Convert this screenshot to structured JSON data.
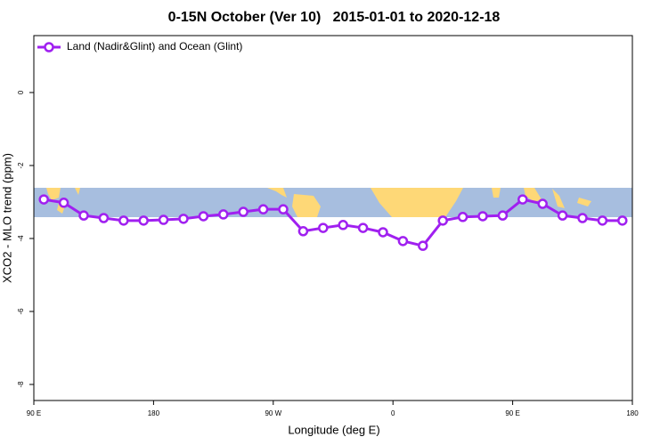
{
  "chart_data": {
    "type": "line",
    "title": "0-15N October (Ver 10)   2015-01-01 to 2020-12-18",
    "x_label": "Longitude (deg E)",
    "y_label": "XCO2 - MLO trend (ppm)",
    "x": [
      97.5,
      112.5,
      127.5,
      142.5,
      157.5,
      172.5,
      187.5,
      202.5,
      217.5,
      232.5,
      247.5,
      262.5,
      277.5,
      292.5,
      307.5,
      322.5,
      337.5,
      352.5,
      367.5,
      382.5,
      397.5,
      412.5,
      427.5,
      442.5,
      457.5,
      472.5,
      487.5,
      502.5,
      517.5,
      532.5
    ],
    "series": [
      {
        "name": "Land (Nadir&Glint) and Ocean (Glint)",
        "color": "#a020f0",
        "values": [
          -2.93,
          -3.02,
          -3.37,
          -3.44,
          -3.51,
          -3.51,
          -3.49,
          -3.46,
          -3.39,
          -3.34,
          -3.27,
          -3.2,
          -3.2,
          -3.8,
          -3.71,
          -3.63,
          -3.71,
          -3.83,
          -4.07,
          -4.2,
          -3.51,
          -3.41,
          -3.39,
          -3.37,
          -2.93,
          -3.05,
          -3.37,
          -3.44,
          -3.51,
          -3.51
        ]
      }
    ],
    "xlim": [
      90,
      540
    ],
    "xticks": [
      {
        "value": 90,
        "label": "90 E"
      },
      180,
      {
        "value": 270,
        "label": "90 W"
      },
      {
        "value": 360,
        "label": "0"
      },
      {
        "value": 450,
        "label": "90 E"
      },
      {
        "value": 540,
        "label": "180"
      }
    ],
    "ylim": [
      -8.44,
      1.56
    ],
    "yticks": [
      0,
      -2,
      -4,
      -6,
      -8
    ],
    "legend": "top-left"
  }
}
